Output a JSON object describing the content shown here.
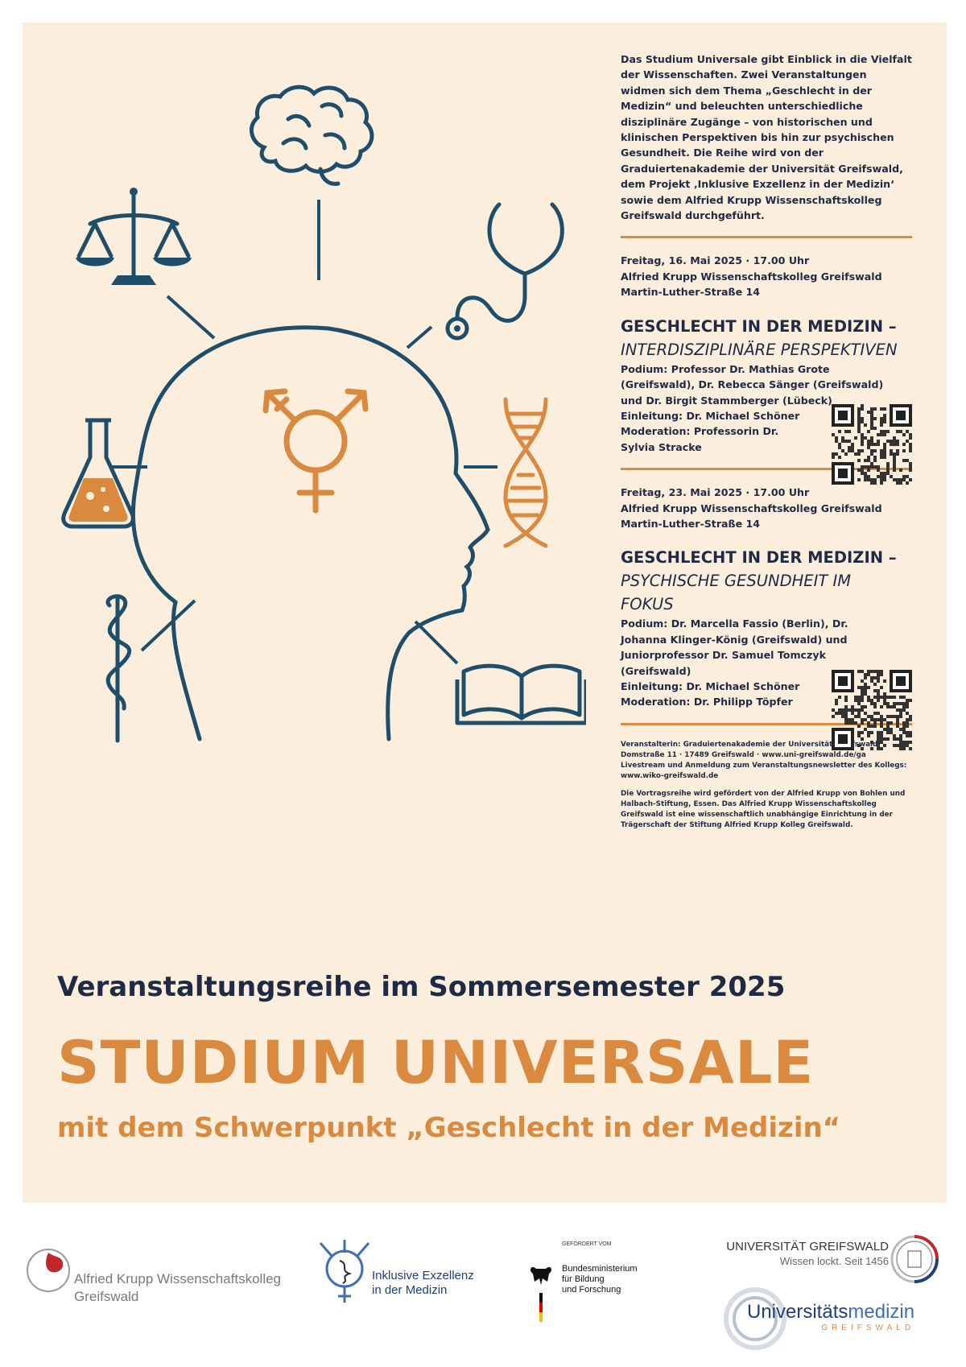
{
  "intro": "Das Studium Universale gibt Einblick in die Vielfalt der Wissenschaften. Zwei Veranstaltungen widmen sich dem Thema „Geschlecht in der Medizin“ und beleuchten unterschiedliche disziplinäre Zugänge – von historischen und klinischen Perspektiven bis hin zur psychischen Gesundheit. Die Reihe wird von der Graduiertenakademie der Universität Greifswald, dem Projekt ‚Inklusive Exzellenz in der Medizin‘ sowie dem Alfried Krupp Wissenschaftskolleg Greifswald durchgeführt.",
  "events": [
    {
      "date": "Freitag, 16. Mai 2025 · 17.00 Uhr",
      "venue": "Alfried Krupp Wissenschaftskolleg Greifswald",
      "address": "Martin-Luther-Straße 14",
      "title": "GESCHLECHT IN DER MEDIZIN –",
      "subtitle": "INTERDISZIPLINÄRE PERSPEKTIVEN",
      "podium": "Podium: Professor Dr. Mathias Grote (Greifswald), Dr. Rebecca Sänger (Greifswald) und Dr. Birgit Stammberger (Lübeck)",
      "intro": "Einleitung: Dr. Michael Schöner",
      "moderation": "Moderation: Professorin Dr. Sylvia Stracke"
    },
    {
      "date": "Freitag, 23. Mai 2025 · 17.00 Uhr",
      "venue": "Alfried Krupp Wissenschaftskolleg Greifswald",
      "address": "Martin-Luther-Straße 14",
      "title": "GESCHLECHT IN DER MEDIZIN –",
      "subtitle": "PSYCHISCHE GESUNDHEIT IM FOKUS",
      "podium": "Podium: Dr. Marcella Fassio (Berlin), Dr. Johanna Klinger-König (Greifswald) und Juniorprofessor Dr. Samuel Tomczyk (Greifswald)",
      "intro": "Einleitung: Dr. Michael Schöner",
      "moderation": "Moderation: Dr. Philipp Töpfer"
    }
  ],
  "fine": {
    "organizer": "Veranstalterin: Graduiertenakademie der Universität Greifswald",
    "address": "Domstraße 11 · 17489 Greifswald · www.uni-greifswald.de/ga",
    "livestream": "Livestream und Anmeldung zum Veranstaltungsnewsletter des Kollegs: www.wiko-greifswald.de",
    "funding": "Die Vortragsreihe wird gefördert von der Alfried Krupp von Bohlen und Halbach-Stiftung, Essen. Das Alfried Krupp Wissenschaftskolleg Greifswald ist eine wissenschaftlich unabhängige Einrichtung in der Trägerschaft der Stiftung Alfried Krupp Kolleg Greifswald."
  },
  "headline": {
    "series": "Veranstaltungsreihe im Sommersemester 2025",
    "title": "STUDIUM UNIVERSALE",
    "focus": "mit dem Schwerpunkt „Geschlecht in der Medizin“"
  },
  "logos": {
    "krupp_line1": "Alfried Krupp Wissenschaftskolleg",
    "krupp_line2": "Greifswald",
    "inklusive_line1": "Inklusive Exzellenz",
    "inklusive_line2": "in der Medizin",
    "bmbf_small": "GEFÖRDERT VOM",
    "bmbf_line1": "Bundesministerium",
    "bmbf_line2": "für Bildung",
    "bmbf_line3": "und Forschung",
    "uni_name": "UNIVERSITÄT GREIFSWALD",
    "uni_tagline": "Wissen lockt. Seit 1456",
    "unimed_a": "Universitäts",
    "unimed_b": "medizin",
    "unimed_c": "GREIFSWALD"
  },
  "colors": {
    "navy": "#1f4e6b",
    "orange": "#d98a3f",
    "cream": "#fbeedd"
  }
}
